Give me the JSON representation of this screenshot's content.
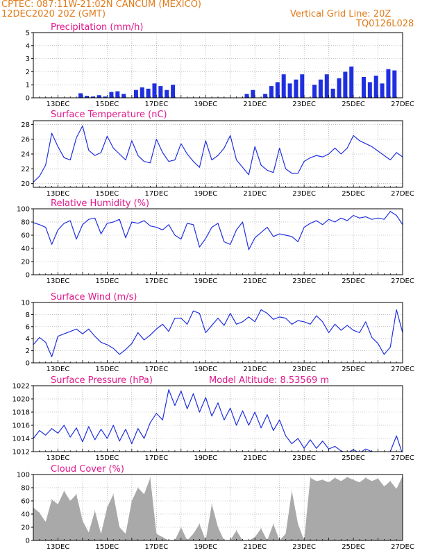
{
  "header": {
    "line1_left": "CPTEC:   087:11W-21:02N   CANCUM (MEXICO)",
    "line2_left": "12DEC2020 20Z (GMT)",
    "line1_right": "Vertical Grid Line: 20Z",
    "line2_right": "TQ0126L028"
  },
  "colors": {
    "header": "#e07b1a",
    "panel_title": "#e0188c",
    "series_line": "#1f2fe0",
    "cloud_bars": "#a9a9a9",
    "grid": "#9a9a9a"
  },
  "chart_data": [
    {
      "id": "precip",
      "type": "bar",
      "title": "Precipitation (mm/h)",
      "ylim": [
        0,
        5
      ],
      "yticks": [
        0,
        1,
        2,
        3,
        4,
        5
      ],
      "xticks": [
        "13DEC",
        "15DEC",
        "17DEC",
        "19DEC",
        "21DEC",
        "23DEC",
        "25DEC",
        "27DEC"
      ],
      "color": "#1f2fe0",
      "x_days": [
        1.92,
        2.17,
        2.42,
        2.67,
        2.92,
        3.17,
        3.42,
        3.67,
        4.17,
        4.42,
        4.67,
        4.92,
        5.17,
        5.42,
        5.67,
        8.67,
        8.92,
        9.42,
        9.67,
        9.92,
        10.17,
        10.42,
        10.67,
        10.92,
        11.42,
        11.67,
        11.92,
        12.17,
        12.42,
        12.67,
        12.92,
        13.42,
        13.67,
        13.92,
        14.17,
        14.42,
        14.67
      ],
      "values": [
        0.35,
        0.15,
        0.1,
        0.2,
        0.1,
        0.45,
        0.5,
        0.3,
        0.6,
        0.8,
        0.7,
        1.1,
        0.9,
        0.6,
        1.0,
        0.3,
        0.6,
        0.3,
        0.9,
        1.2,
        1.8,
        1.1,
        1.4,
        1.8,
        1.0,
        1.4,
        1.8,
        0.7,
        1.5,
        2.0,
        2.4,
        1.6,
        1.2,
        1.7,
        1.1,
        2.2,
        2.1
      ]
    },
    {
      "id": "temp",
      "type": "line",
      "title": "Surface Temperature (nC)",
      "ylim": [
        19.5,
        28.5
      ],
      "yticks": [
        20,
        22,
        24,
        26,
        28
      ],
      "xticks": [
        "13DEC",
        "15DEC",
        "17DEC",
        "19DEC",
        "21DEC",
        "23DEC",
        "25DEC",
        "27DEC"
      ],
      "color": "#1f2fe0",
      "x_days": [
        0,
        0.25,
        0.5,
        0.75,
        1,
        1.25,
        1.5,
        1.75,
        2,
        2.25,
        2.5,
        2.75,
        3,
        3.25,
        3.5,
        3.75,
        4,
        4.25,
        4.5,
        4.75,
        5,
        5.25,
        5.5,
        5.75,
        6,
        6.25,
        6.5,
        6.75,
        7,
        7.25,
        7.5,
        7.75,
        8,
        8.25,
        8.5,
        8.75,
        9,
        9.25,
        9.5,
        9.75,
        10,
        10.25,
        10.5,
        10.75,
        11,
        11.25,
        11.5,
        11.75,
        12,
        12.25,
        12.5,
        12.75,
        13,
        13.25,
        13.5,
        13.75,
        14,
        14.25,
        14.5,
        14.75,
        15
      ],
      "values": [
        20.2,
        21,
        22.5,
        26.8,
        25,
        23.5,
        23.2,
        26.2,
        27.8,
        24.5,
        23.8,
        24.2,
        26.4,
        24.8,
        24,
        23.2,
        25.8,
        23.8,
        23,
        22.8,
        26,
        24.2,
        23,
        23.2,
        25.4,
        24,
        23,
        22.2,
        25.8,
        23.2,
        23.8,
        24.8,
        26.5,
        23.2,
        22.2,
        21.2,
        25,
        22.5,
        21.8,
        21.5,
        24.8,
        22,
        21.4,
        21.4,
        23,
        23.5,
        23.8,
        23.6,
        24,
        24.8,
        24,
        24.8,
        26.5,
        25.8,
        25.4,
        25,
        24.4,
        23.8,
        23.2,
        24.2,
        23.6
      ]
    },
    {
      "id": "rh",
      "type": "line",
      "title": "Relative Humidity (%)",
      "ylim": [
        0,
        100
      ],
      "yticks": [
        0,
        20,
        40,
        60,
        80,
        100
      ],
      "xticks": [
        "13DEC",
        "15DEC",
        "17DEC",
        "19DEC",
        "21DEC",
        "23DEC",
        "25DEC",
        "27DEC"
      ],
      "color": "#1f2fe0",
      "x_days": [
        0,
        0.25,
        0.5,
        0.75,
        1,
        1.25,
        1.5,
        1.75,
        2,
        2.25,
        2.5,
        2.75,
        3,
        3.25,
        3.5,
        3.75,
        4,
        4.25,
        4.5,
        4.75,
        5,
        5.25,
        5.5,
        5.75,
        6,
        6.25,
        6.5,
        6.75,
        7,
        7.25,
        7.5,
        7.75,
        8,
        8.25,
        8.5,
        8.75,
        9,
        9.25,
        9.5,
        9.75,
        10,
        10.25,
        10.5,
        10.75,
        11,
        11.25,
        11.5,
        11.75,
        12,
        12.25,
        12.5,
        12.75,
        13,
        13.25,
        13.5,
        13.75,
        14,
        14.25,
        14.5,
        14.75,
        15
      ],
      "values": [
        79,
        76,
        72,
        46,
        68,
        78,
        82,
        54,
        76,
        84,
        86,
        62,
        78,
        80,
        84,
        56,
        80,
        78,
        82,
        74,
        72,
        68,
        76,
        60,
        54,
        78,
        76,
        42,
        55,
        72,
        78,
        50,
        46,
        68,
        80,
        38,
        56,
        64,
        72,
        58,
        62,
        60,
        58,
        50,
        72,
        78,
        82,
        76,
        84,
        80,
        86,
        82,
        90,
        86,
        88,
        84,
        86,
        84,
        96,
        90,
        76
      ]
    },
    {
      "id": "wind",
      "type": "line",
      "title": "Surface Wind (m/s)",
      "ylim": [
        0,
        10
      ],
      "yticks": [
        0,
        2,
        4,
        6,
        8,
        10
      ],
      "xticks": [
        "13DEC",
        "15DEC",
        "17DEC",
        "19DEC",
        "21DEC",
        "23DEC",
        "25DEC",
        "27DEC"
      ],
      "color": "#1f2fe0",
      "x_days": [
        0,
        0.25,
        0.5,
        0.75,
        1,
        1.25,
        1.5,
        1.75,
        2,
        2.25,
        2.5,
        2.75,
        3,
        3.25,
        3.5,
        3.75,
        4,
        4.25,
        4.5,
        4.75,
        5,
        5.25,
        5.5,
        5.75,
        6,
        6.25,
        6.5,
        6.75,
        7,
        7.25,
        7.5,
        7.75,
        8,
        8.25,
        8.5,
        8.75,
        9,
        9.25,
        9.5,
        9.75,
        10,
        10.25,
        10.5,
        10.75,
        11,
        11.25,
        11.5,
        11.75,
        12,
        12.25,
        12.5,
        12.75,
        13,
        13.25,
        13.5,
        13.75,
        14,
        14.25,
        14.5,
        14.75,
        15
      ],
      "values": [
        3,
        4.2,
        3.4,
        1,
        4.4,
        4.8,
        5.2,
        5.6,
        4.8,
        5.6,
        4.4,
        3.4,
        3,
        2.4,
        1.4,
        2.2,
        3.2,
        5,
        3.8,
        4.6,
        5.6,
        6.4,
        5.2,
        7.4,
        7.4,
        6.4,
        8.6,
        8.2,
        5,
        6.2,
        7.4,
        6.2,
        8.2,
        6.4,
        6.8,
        7.6,
        6.8,
        8.8,
        8.2,
        7.2,
        7.6,
        7.4,
        6.4,
        7,
        6.8,
        6.4,
        7.8,
        6.8,
        5,
        6.4,
        5.4,
        6.2,
        5.4,
        5,
        6.8,
        4.2,
        3.2,
        1.4,
        2.6,
        8.8,
        5
      ]
    },
    {
      "id": "pressure",
      "type": "line",
      "title": "Surface Pressure (hPa)",
      "annotation": "Model Altitude: 8.53569 m",
      "ylim": [
        1012,
        1022
      ],
      "yticks": [
        1012,
        1014,
        1016,
        1018,
        1020,
        1022
      ],
      "xticks": [
        "13DEC",
        "15DEC",
        "17DEC",
        "19DEC",
        "21DEC",
        "23DEC",
        "25DEC",
        "27DEC"
      ],
      "color": "#1f2fe0",
      "x_days": [
        0,
        0.25,
        0.5,
        0.75,
        1,
        1.25,
        1.5,
        1.75,
        2,
        2.25,
        2.5,
        2.75,
        3,
        3.25,
        3.5,
        3.75,
        4,
        4.25,
        4.5,
        4.75,
        5,
        5.25,
        5.5,
        5.75,
        6,
        6.25,
        6.5,
        6.75,
        7,
        7.25,
        7.5,
        7.75,
        8,
        8.25,
        8.5,
        8.75,
        9,
        9.25,
        9.5,
        9.75,
        10,
        10.25,
        10.5,
        10.75,
        11,
        11.25,
        11.5,
        11.75,
        12,
        12.25,
        12.5,
        12.75,
        13,
        13.25,
        13.5,
        13.75,
        14,
        14.25,
        14.5,
        14.75,
        15
      ],
      "values": [
        1014,
        1015.2,
        1014.5,
        1015.5,
        1014.8,
        1016,
        1014.2,
        1015.6,
        1013.5,
        1015.8,
        1013.8,
        1015.4,
        1014,
        1016,
        1013.6,
        1015.4,
        1013.2,
        1015.5,
        1014,
        1016.4,
        1017.8,
        1016.8,
        1021.4,
        1019,
        1021.2,
        1018.5,
        1020.8,
        1018,
        1020.2,
        1017.4,
        1019.4,
        1016.8,
        1018.6,
        1016,
        1018.2,
        1016,
        1018,
        1015.6,
        1017.6,
        1015.2,
        1016.8,
        1014.4,
        1013.2,
        1014,
        1012.5,
        1013.8,
        1012.5,
        1013.6,
        1012.4,
        1012.8,
        1012.1,
        1011.8,
        1012.3,
        1011.8,
        1012.4,
        1012,
        1011.6,
        1011.8,
        1012,
        1014.4,
        1011.6
      ]
    },
    {
      "id": "cloud",
      "type": "area",
      "title": "Cloud Cover (%)",
      "ylim": [
        0,
        100
      ],
      "yticks": [
        0,
        20,
        40,
        60,
        80,
        100
      ],
      "xticks": [
        "13DEC",
        "15DEC",
        "17DEC",
        "19DEC",
        "21DEC",
        "23DEC",
        "25DEC",
        "27DEC"
      ],
      "color": "#a9a9a9",
      "x_days": [
        0,
        0.25,
        0.5,
        0.75,
        1,
        1.25,
        1.5,
        1.75,
        2,
        2.25,
        2.5,
        2.75,
        3,
        3.25,
        3.5,
        3.75,
        4,
        4.25,
        4.5,
        4.75,
        5,
        5.25,
        5.5,
        5.75,
        6,
        6.25,
        6.5,
        6.75,
        7,
        7.25,
        7.5,
        7.75,
        8,
        8.25,
        8.5,
        8.75,
        9,
        9.25,
        9.5,
        9.75,
        10,
        10.25,
        10.5,
        10.75,
        11,
        11.25,
        11.5,
        11.75,
        12,
        12.25,
        12.5,
        12.75,
        13,
        13.25,
        13.5,
        13.75,
        14,
        14.25,
        14.5,
        14.75,
        15
      ],
      "values": [
        50,
        42,
        28,
        62,
        55,
        75,
        60,
        70,
        30,
        12,
        45,
        10,
        50,
        70,
        20,
        10,
        60,
        80,
        70,
        95,
        10,
        5,
        0,
        0,
        20,
        0,
        10,
        25,
        0,
        55,
        20,
        0,
        0,
        15,
        0,
        0,
        5,
        18,
        0,
        25,
        0,
        10,
        75,
        25,
        0,
        95,
        90,
        92,
        88,
        95,
        90,
        96,
        92,
        88,
        95,
        90,
        94,
        82,
        90,
        78,
        98
      ]
    }
  ]
}
